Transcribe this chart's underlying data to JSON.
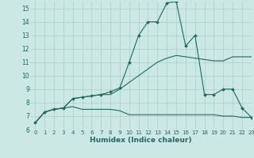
{
  "title": "",
  "xlabel": "Humidex (Indice chaleur)",
  "bg_color": "#cce8e4",
  "grid_color": "#aacec8",
  "line_color": "#1a6b60",
  "xlim": [
    -0.5,
    23
  ],
  "ylim": [
    6,
    15.5
  ],
  "xticks": [
    0,
    1,
    2,
    3,
    4,
    5,
    6,
    7,
    8,
    9,
    10,
    11,
    12,
    13,
    14,
    15,
    16,
    17,
    18,
    19,
    20,
    21,
    22,
    23
  ],
  "yticks": [
    6,
    7,
    8,
    9,
    10,
    11,
    12,
    13,
    14,
    15
  ],
  "series": [
    {
      "x": [
        0,
        1,
        2,
        3,
        4,
        5,
        6,
        7,
        8,
        9,
        10,
        11,
        12,
        13,
        14,
        15,
        16,
        17,
        18,
        19,
        20,
        21,
        22,
        23
      ],
      "y": [
        6.5,
        7.3,
        7.5,
        7.6,
        7.7,
        7.5,
        7.5,
        7.5,
        7.5,
        7.4,
        7.1,
        7.1,
        7.1,
        7.1,
        7.1,
        7.1,
        7.1,
        7.1,
        7.1,
        7.1,
        7.0,
        7.0,
        6.9,
        6.9
      ],
      "marker": false
    },
    {
      "x": [
        0,
        1,
        2,
        3,
        4,
        5,
        6,
        7,
        8,
        9,
        10,
        11,
        12,
        13,
        14,
        15,
        16,
        17,
        18,
        19,
        20,
        21,
        22,
        23
      ],
      "y": [
        6.5,
        7.3,
        7.5,
        7.6,
        8.3,
        8.4,
        8.5,
        8.6,
        8.6,
        9.0,
        9.5,
        10.0,
        10.5,
        11.0,
        11.3,
        11.5,
        11.4,
        11.3,
        11.2,
        11.1,
        11.1,
        11.4,
        11.4,
        11.4
      ],
      "marker": false
    },
    {
      "x": [
        0,
        1,
        2,
        3,
        4,
        5,
        6,
        7,
        8,
        9,
        10,
        11,
        12,
        13,
        14,
        15,
        16,
        17,
        18,
        19,
        20,
        21,
        22,
        23
      ],
      "y": [
        6.5,
        7.3,
        7.5,
        7.6,
        8.3,
        8.4,
        8.5,
        8.6,
        8.8,
        9.1,
        11.0,
        13.0,
        14.0,
        14.0,
        15.4,
        15.5,
        12.2,
        13.0,
        8.6,
        8.6,
        9.0,
        9.0,
        7.6,
        6.9
      ],
      "marker": true
    }
  ]
}
